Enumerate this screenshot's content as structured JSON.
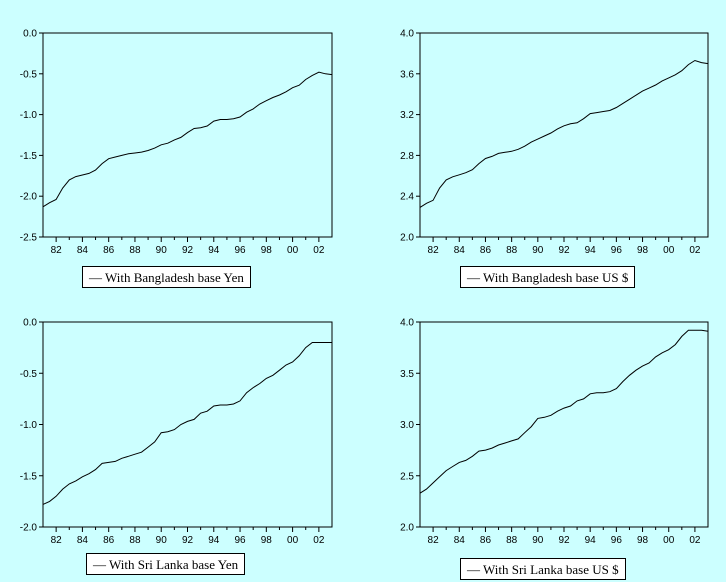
{
  "chart_data": [
    {
      "type": "line",
      "ylim": [
        -2.5,
        0.0
      ],
      "yticks": [
        "0.0",
        "-0.5",
        "-1.0",
        "-1.5",
        "-2.0",
        "-2.5"
      ],
      "xticks": [
        "82",
        "84",
        "86",
        "88",
        "90",
        "92",
        "94",
        "96",
        "98",
        "00",
        "02"
      ],
      "series": [
        {
          "name": "With Bangladesh base Yen",
          "x": [
            1981,
            1981.5,
            1982,
            1982.5,
            1983,
            1983.5,
            1984,
            1984.5,
            1985,
            1985.5,
            1986,
            1986.5,
            1987,
            1987.5,
            1988,
            1988.5,
            1989,
            1989.5,
            1990,
            1990.5,
            1991,
            1991.5,
            1992,
            1992.5,
            1993,
            1993.5,
            1994,
            1994.5,
            1995,
            1995.5,
            1996,
            1996.5,
            1997,
            1997.5,
            1998,
            1998.5,
            1999,
            1999.5,
            2000,
            2000.5,
            2001,
            2001.5,
            2002,
            2002.5,
            2003
          ],
          "values": [
            -2.13,
            -2.08,
            -2.04,
            -1.9,
            -1.8,
            -1.76,
            -1.74,
            -1.72,
            -1.68,
            -1.6,
            -1.54,
            -1.52,
            -1.5,
            -1.48,
            -1.47,
            -1.46,
            -1.44,
            -1.41,
            -1.37,
            -1.35,
            -1.31,
            -1.28,
            -1.22,
            -1.17,
            -1.16,
            -1.14,
            -1.08,
            -1.06,
            -1.06,
            -1.05,
            -1.03,
            -0.97,
            -0.93,
            -0.87,
            -0.83,
            -0.79,
            -0.76,
            -0.72,
            -0.67,
            -0.64,
            -0.57,
            -0.52,
            -0.48,
            -0.5,
            -0.51
          ]
        }
      ]
    },
    {
      "type": "line",
      "ylim": [
        2.0,
        4.0
      ],
      "yticks": [
        "4.0",
        "3.6",
        "3.2",
        "2.8",
        "2.4",
        "2.0"
      ],
      "xticks": [
        "82",
        "84",
        "86",
        "88",
        "90",
        "92",
        "94",
        "96",
        "98",
        "00",
        "02"
      ],
      "series": [
        {
          "name": "With Bangladesh base US $",
          "x": [
            1981,
            1981.5,
            1982,
            1982.5,
            1983,
            1983.5,
            1984,
            1984.5,
            1985,
            1985.5,
            1986,
            1986.5,
            1987,
            1987.5,
            1988,
            1988.5,
            1989,
            1989.5,
            1990,
            1990.5,
            1991,
            1991.5,
            1992,
            1992.5,
            1993,
            1993.5,
            1994,
            1994.5,
            1995,
            1995.5,
            1996,
            1996.5,
            1997,
            1997.5,
            1998,
            1998.5,
            1999,
            1999.5,
            2000,
            2000.5,
            2001,
            2001.5,
            2002,
            2002.5,
            2003
          ],
          "values": [
            2.29,
            2.33,
            2.36,
            2.48,
            2.56,
            2.59,
            2.61,
            2.63,
            2.66,
            2.72,
            2.77,
            2.79,
            2.82,
            2.83,
            2.84,
            2.86,
            2.89,
            2.93,
            2.96,
            2.99,
            3.02,
            3.06,
            3.09,
            3.11,
            3.12,
            3.16,
            3.21,
            3.22,
            3.23,
            3.24,
            3.27,
            3.31,
            3.35,
            3.39,
            3.43,
            3.46,
            3.49,
            3.53,
            3.56,
            3.59,
            3.63,
            3.69,
            3.73,
            3.71,
            3.7
          ]
        }
      ]
    },
    {
      "type": "line",
      "ylim": [
        -2.0,
        0.0
      ],
      "yticks": [
        "0.0",
        "-0.5",
        "-1.0",
        "-1.5",
        "-2.0"
      ],
      "xticks": [
        "82",
        "84",
        "86",
        "88",
        "90",
        "92",
        "94",
        "96",
        "98",
        "00",
        "02"
      ],
      "series": [
        {
          "name": "With Sri Lanka base Yen",
          "x": [
            1981,
            1981.5,
            1982,
            1982.5,
            1983,
            1983.5,
            1984,
            1984.5,
            1985,
            1985.5,
            1986,
            1986.5,
            1987,
            1987.5,
            1988,
            1988.5,
            1989,
            1989.5,
            1990,
            1990.5,
            1991,
            1991.5,
            1992,
            1992.5,
            1993,
            1993.5,
            1994,
            1994.5,
            1995,
            1995.5,
            1996,
            1996.5,
            1997,
            1997.5,
            1998,
            1998.5,
            1999,
            1999.5,
            2000,
            2000.5,
            2001,
            2001.5,
            2002,
            2002.5,
            2003
          ],
          "values": [
            -1.78,
            -1.75,
            -1.7,
            -1.63,
            -1.58,
            -1.55,
            -1.51,
            -1.48,
            -1.44,
            -1.38,
            -1.37,
            -1.36,
            -1.33,
            -1.31,
            -1.29,
            -1.27,
            -1.22,
            -1.17,
            -1.08,
            -1.07,
            -1.05,
            -1.0,
            -0.97,
            -0.95,
            -0.89,
            -0.87,
            -0.82,
            -0.81,
            -0.81,
            -0.8,
            -0.77,
            -0.69,
            -0.64,
            -0.6,
            -0.55,
            -0.52,
            -0.47,
            -0.42,
            -0.39,
            -0.33,
            -0.25,
            -0.2,
            -0.2,
            -0.2,
            -0.2
          ]
        }
      ]
    },
    {
      "type": "line",
      "ylim": [
        2.0,
        4.0
      ],
      "yticks": [
        "4.0",
        "3.5",
        "3.0",
        "2.5",
        "2.0"
      ],
      "xticks": [
        "82",
        "84",
        "86",
        "88",
        "90",
        "92",
        "94",
        "96",
        "98",
        "00",
        "02"
      ],
      "series": [
        {
          "name": "With Sri Lanka base US $",
          "x": [
            1981,
            1981.5,
            1982,
            1982.5,
            1983,
            1983.5,
            1984,
            1984.5,
            1985,
            1985.5,
            1986,
            1986.5,
            1987,
            1987.5,
            1988,
            1988.5,
            1989,
            1989.5,
            1990,
            1990.5,
            1991,
            1991.5,
            1992,
            1992.5,
            1993,
            1993.5,
            1994,
            1994.5,
            1995,
            1995.5,
            1996,
            1996.5,
            1997,
            1997.5,
            1998,
            1998.5,
            1999,
            1999.5,
            2000,
            2000.5,
            2001,
            2001.5,
            2002,
            2002.5,
            2003
          ],
          "values": [
            2.33,
            2.37,
            2.43,
            2.49,
            2.55,
            2.59,
            2.63,
            2.65,
            2.69,
            2.74,
            2.75,
            2.77,
            2.8,
            2.82,
            2.84,
            2.86,
            2.92,
            2.98,
            3.06,
            3.07,
            3.09,
            3.13,
            3.16,
            3.18,
            3.23,
            3.25,
            3.3,
            3.31,
            3.31,
            3.32,
            3.35,
            3.42,
            3.48,
            3.53,
            3.57,
            3.6,
            3.66,
            3.7,
            3.73,
            3.78,
            3.86,
            3.92,
            3.92,
            3.92,
            3.91
          ]
        }
      ]
    }
  ],
  "style": {
    "background": "#CCFFFF",
    "plot_fill": "#CCFFFF",
    "line_color": "#000000",
    "legend_fill": "#FFFFFF"
  },
  "legend_prefix": "—"
}
